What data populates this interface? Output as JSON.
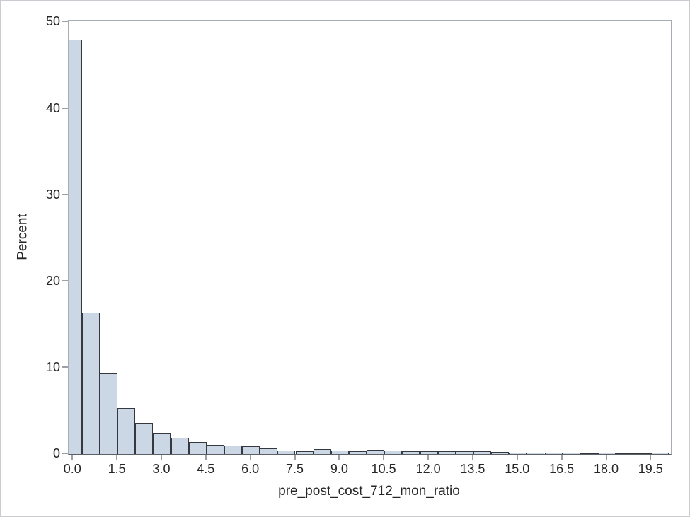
{
  "chart_data": {
    "type": "bar",
    "chart_kind": "histogram",
    "title": "",
    "xlabel": "pre_post_cost_712_mon_ratio",
    "ylabel": "Percent",
    "grid": false,
    "legend": false,
    "bin_width": 0.6,
    "bin_midpoints": [
      0,
      0.6,
      1.2,
      1.8,
      2.4,
      3.0,
      3.6,
      4.2,
      4.8,
      5.4,
      6.0,
      6.6,
      7.2,
      7.8,
      8.4,
      9.0,
      9.6,
      10.2,
      10.8,
      11.4,
      12.0,
      12.6,
      13.2,
      13.8,
      14.4,
      15.0,
      15.6,
      16.2,
      16.8,
      17.4,
      18.0,
      18.6,
      19.2,
      19.8
    ],
    "values": [
      48.0,
      16.4,
      9.3,
      5.3,
      3.6,
      2.5,
      1.85,
      1.4,
      1.1,
      0.95,
      0.9,
      0.62,
      0.4,
      0.33,
      0.55,
      0.4,
      0.35,
      0.5,
      0.4,
      0.35,
      0.35,
      0.3,
      0.3,
      0.3,
      0.25,
      0.2,
      0.18,
      0.15,
      0.15,
      0.12,
      0.15,
      0.12,
      0.12,
      0.15
    ],
    "x_ticks": [
      0,
      1.5,
      3.0,
      4.5,
      6.0,
      7.5,
      9.0,
      10.5,
      12.0,
      13.5,
      15.0,
      16.5,
      18.0,
      19.5
    ],
    "x_tick_labels": [
      "0.0",
      "1.5",
      "3.0",
      "4.5",
      "6.0",
      "7.5",
      "9.0",
      "10.5",
      "12.0",
      "13.5",
      "15.0",
      "16.5",
      "18.0",
      "19.5"
    ],
    "y_ticks": [
      0,
      10,
      20,
      30,
      40,
      50
    ],
    "y_tick_labels": [
      "0",
      "10",
      "20",
      "30",
      "40",
      "50"
    ],
    "xlim": [
      -0.15,
      20.16
    ],
    "ylim": [
      0,
      50.2
    ],
    "colors": {
      "bar_fill": "#ccd7e5",
      "bar_border": "#35383e",
      "frame": "#a6adb4",
      "tick": "#9aa1a8",
      "text": "#262626",
      "outer_border": "#c9cdd1",
      "background": "#ffffff"
    }
  }
}
